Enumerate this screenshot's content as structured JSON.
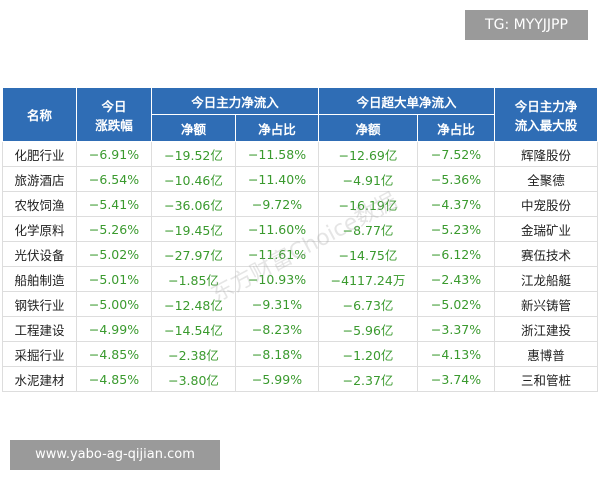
{
  "badge": "TG: MYYJJPP",
  "footer": "www.yabo-ag-qijian.com",
  "watermark": "东方财富Choice数据",
  "table": {
    "head": {
      "name": "名称",
      "change": [
        "今日",
        "涨跌幅"
      ],
      "main_group": "今日主力净流入",
      "super_group": "今日超大单净流入",
      "top_stock": [
        "今日主力净",
        "流入最大股"
      ],
      "sub": [
        "净额",
        "净占比",
        "净额",
        "净占比"
      ]
    },
    "rows": [
      [
        "化肥行业",
        "−6.91%",
        "−19.52亿",
        "−11.58%",
        "−12.69亿",
        "−7.52%",
        "辉隆股份"
      ],
      [
        "旅游酒店",
        "−6.54%",
        "−10.46亿",
        "−11.40%",
        "−4.91亿",
        "−5.36%",
        "全聚德"
      ],
      [
        "农牧饲渔",
        "−5.41%",
        "−36.06亿",
        "−9.72%",
        "−16.19亿",
        "−4.37%",
        "中宠股份"
      ],
      [
        "化学原料",
        "−5.26%",
        "−19.45亿",
        "−11.60%",
        "−8.77亿",
        "−5.23%",
        "金瑞矿业"
      ],
      [
        "光伏设备",
        "−5.02%",
        "−27.97亿",
        "−11.61%",
        "−14.75亿",
        "−6.12%",
        "赛伍技术"
      ],
      [
        "船舶制造",
        "−5.01%",
        "−1.85亿",
        "−10.93%",
        "−4117.24万",
        "−2.43%",
        "江龙船艇"
      ],
      [
        "钢铁行业",
        "−5.00%",
        "−12.48亿",
        "−9.31%",
        "−6.73亿",
        "−5.02%",
        "新兴铸管"
      ],
      [
        "工程建设",
        "−4.99%",
        "−14.54亿",
        "−8.23%",
        "−5.96亿",
        "−3.37%",
        "浙江建投"
      ],
      [
        "采掘行业",
        "−4.85%",
        "−2.38亿",
        "−8.18%",
        "−1.20亿",
        "−4.13%",
        "惠博普"
      ],
      [
        "水泥建材",
        "−4.85%",
        "−3.80亿",
        "−5.99%",
        "−2.37亿",
        "−3.74%",
        "三和管桩"
      ]
    ]
  }
}
